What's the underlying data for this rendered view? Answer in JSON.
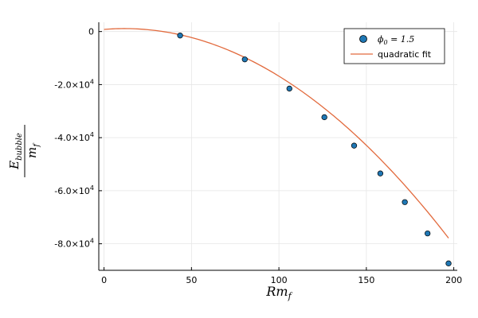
{
  "chart_data": {
    "type": "scatter",
    "xlabel_main": "Rm",
    "xlabel_sub": "f",
    "ylabel_num_main": "E",
    "ylabel_num_sub": "bubble",
    "ylabel_den_main": "m",
    "ylabel_den_sub": "f",
    "xlim": [
      -3,
      202
    ],
    "ylim": [
      -90000,
      3500
    ],
    "x_ticks": [
      0,
      50,
      100,
      150,
      200
    ],
    "y_ticks": [
      {
        "value": 0,
        "label": "0",
        "exp": ""
      },
      {
        "value": -20000,
        "label": "-2.0×10",
        "exp": "4"
      },
      {
        "value": -40000,
        "label": "-4.0×10",
        "exp": "4"
      },
      {
        "value": -60000,
        "label": "-6.0×10",
        "exp": "4"
      },
      {
        "value": -80000,
        "label": "-8.0×10",
        "exp": "4"
      }
    ],
    "grid": true,
    "legend_position": "top-right",
    "series": [
      {
        "name": "ϕ",
        "name_sub": "0",
        "name_suffix": " = 1.5",
        "kind": "scatter",
        "color": "#1f77b4",
        "points": [
          {
            "x": 43.5,
            "y": -1500
          },
          {
            "x": 80.5,
            "y": -10500
          },
          {
            "x": 106,
            "y": -21500
          },
          {
            "x": 126,
            "y": -32300
          },
          {
            "x": 143,
            "y": -43000
          },
          {
            "x": 158,
            "y": -53500
          },
          {
            "x": 172,
            "y": -64300
          },
          {
            "x": 185,
            "y": -76100
          },
          {
            "x": 197,
            "y": -87400
          }
        ]
      },
      {
        "name": "quadratic fit",
        "kind": "line",
        "color": "#e26a3d",
        "x_range": [
          0,
          197
        ],
        "coefficients": {
          "a": -2.3,
          "b": 53.8,
          "c": 800
        }
      }
    ]
  }
}
